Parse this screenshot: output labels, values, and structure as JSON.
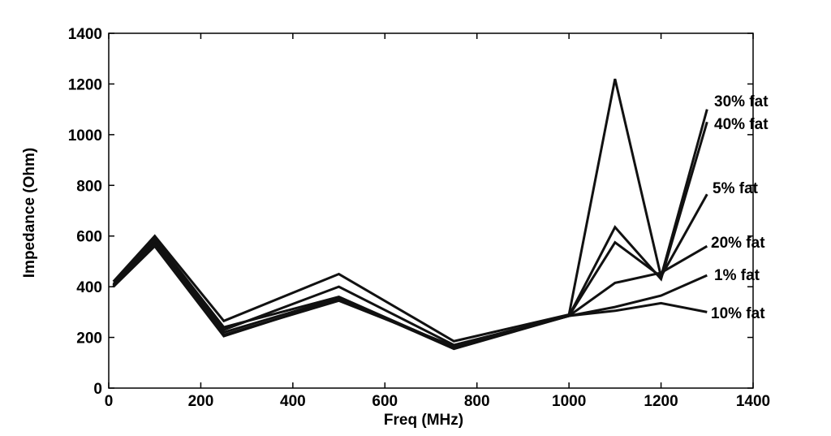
{
  "chart_data": {
    "type": "line",
    "title": "",
    "xlabel": "Freq  (MHz)",
    "ylabel": "Impedance (Ohm)",
    "xlim": [
      0,
      1400
    ],
    "ylim": [
      0,
      1400
    ],
    "x_ticks": [
      0,
      200,
      400,
      600,
      800,
      1000,
      1200,
      1400
    ],
    "y_ticks": [
      0,
      200,
      400,
      600,
      800,
      1000,
      1200,
      1400
    ],
    "grid": false,
    "line_color": "#111111",
    "x": [
      10,
      100,
      250,
      500,
      750,
      1000,
      1100,
      1200,
      1300
    ],
    "series": [
      {
        "name": "30% fat",
        "values": [
          420,
          600,
          265,
          450,
          185,
          290,
          1220,
          440,
          1100
        ]
      },
      {
        "name": "40% fat",
        "values": [
          410,
          590,
          240,
          360,
          160,
          285,
          635,
          430,
          1050
        ]
      },
      {
        "name": "5% fat",
        "values": [
          400,
          580,
          230,
          400,
          170,
          285,
          575,
          440,
          765
        ]
      },
      {
        "name": "20% fat",
        "values": [
          405,
          570,
          220,
          355,
          155,
          285,
          415,
          455,
          560
        ]
      },
      {
        "name": "1% fat",
        "values": [
          400,
          560,
          205,
          350,
          160,
          285,
          320,
          365,
          445
        ]
      },
      {
        "name": "10% fat",
        "values": [
          405,
          565,
          210,
          345,
          165,
          285,
          305,
          335,
          300
        ]
      }
    ]
  }
}
